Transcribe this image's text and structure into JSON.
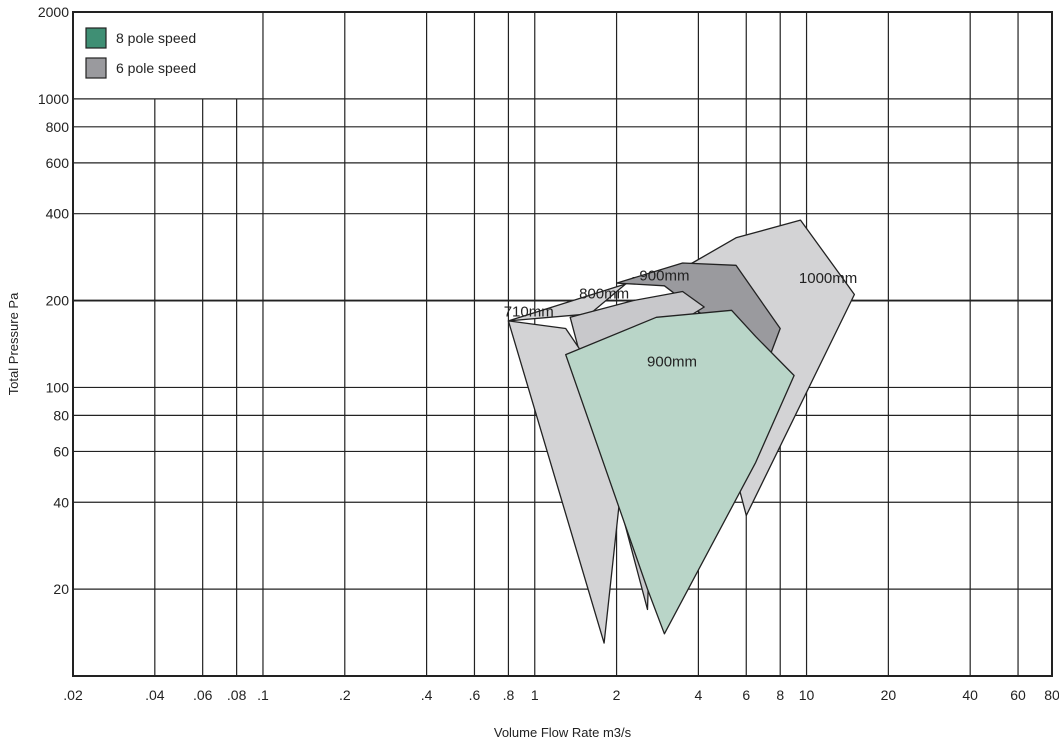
{
  "chart_data": {
    "type": "area",
    "xlabel": "Volume Flow Rate m3/s",
    "ylabel": "Total Pressure Pa",
    "x_scale": "log",
    "y_scale": "log",
    "xlim": [
      0.02,
      80
    ],
    "ylim": [
      10,
      2000
    ],
    "grid": true,
    "legend_position": "top-left",
    "x_ticks": [
      {
        "value": 0.02,
        "label": ".02"
      },
      {
        "value": 0.04,
        "label": ".04"
      },
      {
        "value": 0.06,
        "label": ".06"
      },
      {
        "value": 0.08,
        "label": ".08"
      },
      {
        "value": 0.1,
        "label": ".1"
      },
      {
        "value": 0.2,
        "label": ".2"
      },
      {
        "value": 0.4,
        "label": ".4"
      },
      {
        "value": 0.6,
        "label": ".6"
      },
      {
        "value": 0.8,
        "label": ".8"
      },
      {
        "value": 1,
        "label": "1"
      },
      {
        "value": 2,
        "label": "2"
      },
      {
        "value": 4,
        "label": "4"
      },
      {
        "value": 6,
        "label": "6"
      },
      {
        "value": 8,
        "label": "8"
      },
      {
        "value": 10,
        "label": "10"
      },
      {
        "value": 20,
        "label": "20"
      },
      {
        "value": 40,
        "label": "40"
      },
      {
        "value": 60,
        "label": "60"
      },
      {
        "value": 80,
        "label": "80"
      }
    ],
    "y_ticks": [
      {
        "value": 20,
        "label": "20"
      },
      {
        "value": 40,
        "label": "40"
      },
      {
        "value": 60,
        "label": "60"
      },
      {
        "value": 80,
        "label": "80"
      },
      {
        "value": 100,
        "label": "100"
      },
      {
        "value": 200,
        "label": "200"
      },
      {
        "value": 400,
        "label": "400"
      },
      {
        "value": 600,
        "label": "600"
      },
      {
        "value": 800,
        "label": "800"
      },
      {
        "value": 1000,
        "label": "1000"
      },
      {
        "value": 2000,
        "label": "2000"
      }
    ],
    "legend": [
      {
        "name": "8 pole speed",
        "color": "#3f8f74"
      },
      {
        "name": "6 pole speed",
        "color": "#9a9a9e"
      }
    ],
    "series": [
      {
        "label": "1000mm",
        "speed": "6 pole speed",
        "fill": "#d3d3d5",
        "points": [
          [
            3.8,
            270
          ],
          [
            5.5,
            330
          ],
          [
            9.5,
            380
          ],
          [
            15,
            210
          ],
          [
            6,
            36
          ],
          [
            5.2,
            60
          ],
          [
            4.5,
            180
          ],
          [
            3.0,
            240
          ],
          [
            2.3,
            240
          ],
          [
            1.6,
            180
          ],
          [
            0.8,
            170
          ]
        ]
      },
      {
        "label": "900mm",
        "speed": "6 pole speed",
        "fill": "#9a9a9e",
        "points": [
          [
            2.0,
            230
          ],
          [
            3.5,
            270
          ],
          [
            5.5,
            265
          ],
          [
            8.0,
            160
          ],
          [
            5.4,
            60
          ],
          [
            4.1,
            180
          ],
          [
            3.0,
            225
          ]
        ]
      },
      {
        "label": "800mm",
        "speed": "6 pole speed",
        "fill": "#c8c8cb",
        "points": [
          [
            1.35,
            175
          ],
          [
            2.3,
            200
          ],
          [
            3.5,
            215
          ],
          [
            4.2,
            190
          ],
          [
            2.8,
            150
          ],
          [
            2.6,
            17
          ]
        ]
      },
      {
        "label": "710mm",
        "speed": "6 pole speed",
        "fill": "#d3d3d5",
        "points": [
          [
            0.8,
            170
          ],
          [
            1.3,
            160
          ],
          [
            1.6,
            120
          ],
          [
            2.3,
            110
          ],
          [
            1.8,
            13
          ]
        ]
      },
      {
        "label": "900mm",
        "speed": "8 pole speed",
        "fill": "#b9d5c8",
        "points": [
          [
            1.3,
            130
          ],
          [
            2.8,
            175
          ],
          [
            5.3,
            185
          ],
          [
            6.5,
            150
          ],
          [
            9,
            110
          ],
          [
            6.5,
            55
          ],
          [
            3.0,
            14
          ],
          [
            2.6,
            20
          ]
        ]
      }
    ],
    "annotations": [
      {
        "text": "900mm",
        "x": 3.0,
        "y": 235
      },
      {
        "text": "800mm",
        "x": 1.8,
        "y": 203
      },
      {
        "text": "710mm",
        "x": 0.95,
        "y": 176
      },
      {
        "text": "1000mm",
        "x": 12,
        "y": 230
      },
      {
        "text": "900mm",
        "x": 3.2,
        "y": 118
      }
    ]
  }
}
